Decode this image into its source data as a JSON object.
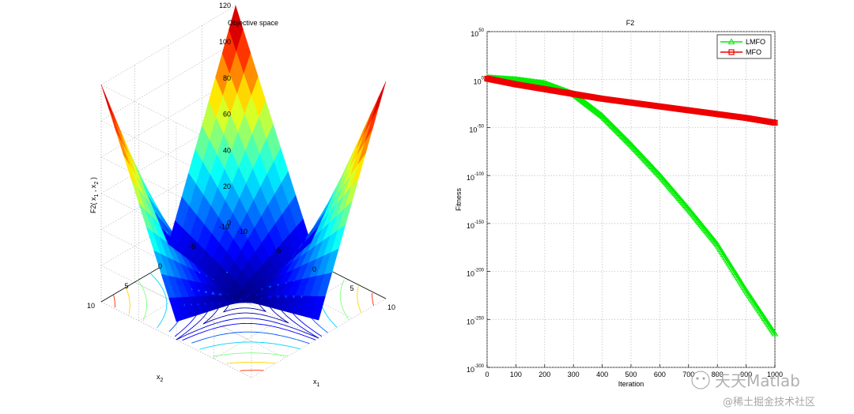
{
  "chart_data": [
    {
      "type": "surface",
      "title": "Objective space",
      "xlabel": "x1",
      "ylabel": "x2",
      "zlabel": "F2( x1 , x2 )",
      "xlim": [
        -10,
        10
      ],
      "ylim": [
        -10,
        10
      ],
      "zlim": [
        0,
        120
      ],
      "x_ticks": [
        "-10",
        "-5",
        "0",
        "5",
        "10"
      ],
      "y_ticks": [
        "-10",
        "-5",
        "0",
        "5",
        "10"
      ],
      "z_ticks": [
        "0",
        "20",
        "40",
        "60",
        "80",
        "100",
        "120"
      ],
      "function": "|x1| + |x2| + |x1|*|x2|",
      "grid": true,
      "colormap": "jet",
      "contour_projection": true
    },
    {
      "type": "line",
      "title": "F2",
      "xlabel": "Iteration",
      "ylabel": "Fitness",
      "xlim": [
        0,
        1000
      ],
      "y_scale": "log",
      "y_exponent_lim": [
        -300,
        50
      ],
      "x_ticks": [
        "0",
        "100",
        "200",
        "300",
        "400",
        "500",
        "600",
        "700",
        "800",
        "900",
        "1000"
      ],
      "y_ticks": [
        {
          "base": "10",
          "exp": "50"
        },
        {
          "base": "10",
          "exp": "0"
        },
        {
          "base": "10",
          "exp": "-50"
        },
        {
          "base": "10",
          "exp": "-100"
        },
        {
          "base": "10",
          "exp": "-150"
        },
        {
          "base": "10",
          "exp": "-200"
        },
        {
          "base": "10",
          "exp": "-250"
        },
        {
          "base": "10",
          "exp": "-300"
        }
      ],
      "legend_position": "top-right",
      "grid": true,
      "series": [
        {
          "name": "LMFO",
          "color": "#00ee00",
          "marker": "triangle",
          "x": [
            0,
            100,
            200,
            300,
            400,
            500,
            600,
            700,
            800,
            900,
            1000
          ],
          "y_exponent": [
            2,
            0,
            -4,
            -15,
            -38,
            -68,
            -100,
            -135,
            -172,
            -220,
            -265
          ]
        },
        {
          "name": "MFO",
          "color": "#ee0000",
          "marker": "square",
          "x": [
            0,
            100,
            200,
            300,
            400,
            500,
            600,
            700,
            800,
            900,
            1000
          ],
          "y_exponent": [
            1,
            -5,
            -10,
            -15,
            -20,
            -24,
            -28,
            -32,
            -36,
            -40,
            -45
          ]
        }
      ]
    }
  ],
  "watermark": {
    "brand": "天天Matlab",
    "site": "@稀土掘金技术社区"
  }
}
